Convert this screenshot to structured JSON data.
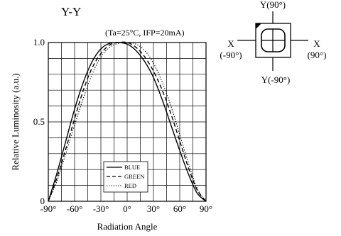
{
  "chart_data": {
    "type": "line",
    "title": "Y-Y",
    "subtitle": "(Ta=25°C, IFP=20mA)",
    "xlabel": "Radiation Angle",
    "ylabel": "Relative Luminosity   (a.u.)",
    "xlim": [
      -90,
      90
    ],
    "ylim": [
      0,
      1.0
    ],
    "x_ticks": [
      -90,
      -60,
      -30,
      0,
      30,
      60,
      90
    ],
    "x_tick_labels": [
      "-90°",
      "-60°",
      "-30°",
      "0°",
      "30°",
      "60°",
      "90°"
    ],
    "y_ticks": [
      0,
      0.5,
      1.0
    ],
    "y_tick_labels": [
      "0",
      "0.5",
      "1.0"
    ],
    "grid": true,
    "legend_position": "bottom-center",
    "x": [
      -90,
      -80,
      -70,
      -60,
      -50,
      -40,
      -30,
      -20,
      -10,
      0,
      10,
      20,
      30,
      40,
      50,
      60,
      70,
      80,
      90
    ],
    "series": [
      {
        "name": "BLUE",
        "style": "solid",
        "values": [
          0.0,
          0.18,
          0.38,
          0.58,
          0.75,
          0.88,
          0.96,
          0.995,
          1.0,
          0.99,
          0.95,
          0.88,
          0.78,
          0.64,
          0.48,
          0.32,
          0.17,
          0.05,
          0.0
        ]
      },
      {
        "name": "GREEN",
        "style": "dashed",
        "values": [
          0.0,
          0.15,
          0.33,
          0.52,
          0.7,
          0.84,
          0.93,
          0.985,
          1.0,
          1.0,
          0.97,
          0.91,
          0.82,
          0.7,
          0.55,
          0.38,
          0.21,
          0.07,
          0.0
        ]
      },
      {
        "name": "RED",
        "style": "dotted",
        "values": [
          0.0,
          0.13,
          0.3,
          0.48,
          0.65,
          0.8,
          0.91,
          0.97,
          0.995,
          1.0,
          0.99,
          0.95,
          0.87,
          0.75,
          0.6,
          0.42,
          0.24,
          0.08,
          0.0
        ]
      }
    ]
  },
  "orientation_diagram": {
    "top_label": "Y(90°)",
    "bottom_label": "Y(-90°)",
    "left_label_1": "X",
    "left_label_2": "(-90°)",
    "right_label_1": "X",
    "right_label_2": "(90°)"
  }
}
